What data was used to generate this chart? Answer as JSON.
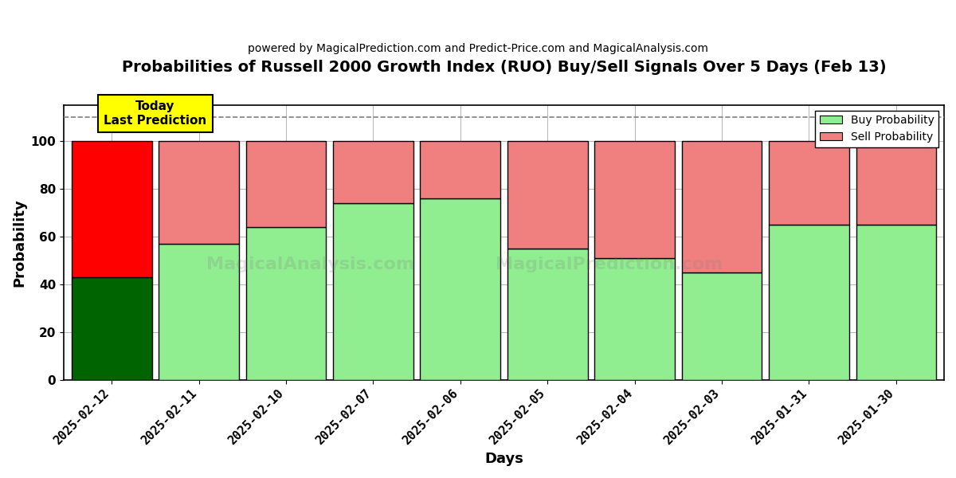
{
  "title": "Probabilities of Russell 2000 Growth Index (RUO) Buy/Sell Signals Over 5 Days (Feb 13)",
  "subtitle": "powered by MagicalPrediction.com and Predict-Price.com and MagicalAnalysis.com",
  "xlabel": "Days",
  "ylabel": "Probability",
  "categories": [
    "2025-02-12",
    "2025-02-11",
    "2025-02-10",
    "2025-02-07",
    "2025-02-06",
    "2025-02-05",
    "2025-02-04",
    "2025-02-03",
    "2025-01-31",
    "2025-01-30"
  ],
  "buy_values": [
    43,
    57,
    64,
    74,
    76,
    55,
    51,
    45,
    65,
    65
  ],
  "sell_values": [
    57,
    43,
    36,
    26,
    24,
    45,
    49,
    55,
    35,
    35
  ],
  "buy_colors": [
    "#006400",
    "#90EE90",
    "#90EE90",
    "#90EE90",
    "#90EE90",
    "#90EE90",
    "#90EE90",
    "#90EE90",
    "#90EE90",
    "#90EE90"
  ],
  "sell_colors": [
    "#FF0000",
    "#F08080",
    "#F08080",
    "#F08080",
    "#F08080",
    "#F08080",
    "#F08080",
    "#F08080",
    "#F08080",
    "#F08080"
  ],
  "today_label": "Today\nLast Prediction",
  "today_bg_color": "#FFFF00",
  "dashed_line_y": 110,
  "ylim": [
    0,
    115
  ],
  "yticks": [
    0,
    20,
    40,
    60,
    80,
    100
  ],
  "legend_buy_color": "#90EE90",
  "legend_sell_color": "#F08080",
  "watermark1": "MagicalAnalysis.com",
  "watermark2": "MagicalPrediction.com",
  "bar_edge_color": "#000000",
  "grid_color": "#aaaaaa",
  "background_color": "#FFFFFF",
  "bar_width": 0.92
}
